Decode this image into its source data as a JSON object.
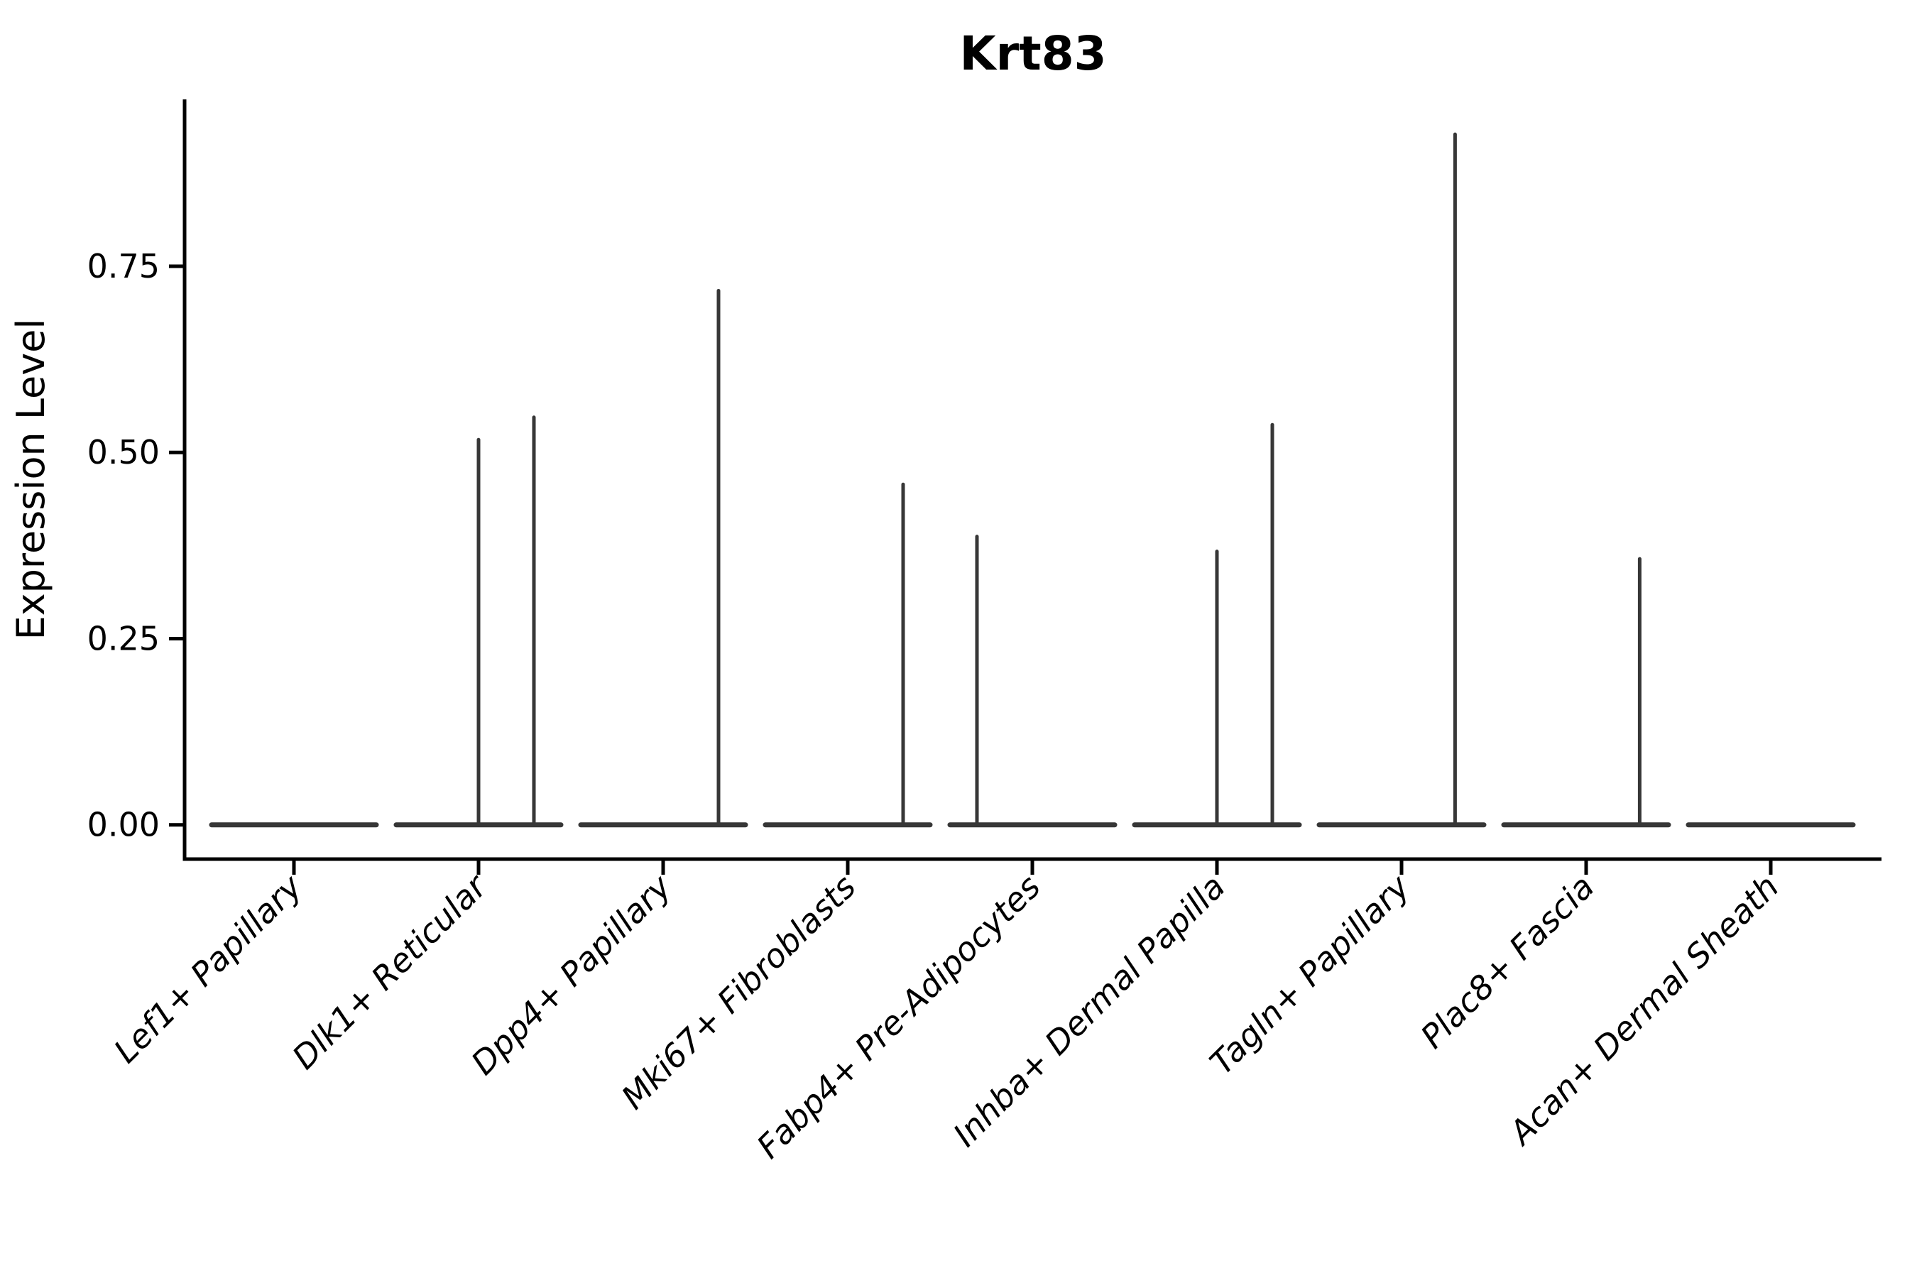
{
  "page": {
    "background": "#ffffff"
  },
  "chart_data": {
    "type": "violin",
    "title": "Krt83",
    "xlabel": "",
    "ylabel": "Expression Level",
    "ylim": [
      -0.046,
      0.974
    ],
    "grid": false,
    "legend": "none",
    "axis_color": "#000000",
    "violin_color": "#373737",
    "yticks": [
      {
        "value": 0.0,
        "label": "0.00"
      },
      {
        "value": 0.25,
        "label": "0.25"
      },
      {
        "value": 0.5,
        "label": "0.50"
      },
      {
        "value": 0.75,
        "label": "0.75"
      }
    ],
    "categories": [
      "Lef1+ Papillary",
      "Dlk1+ Reticular",
      "Dpp4+ Papillary",
      "Mki67+ Fibroblasts",
      "Fabp4+ Pre-Adipocytes",
      "Inhba+ Dermal Papilla",
      "Tagln+ Papillary",
      "Plac8+ Fascia",
      "Acan+ Dermal Sheath"
    ],
    "violins": [
      {
        "category": "Lef1+ Papillary",
        "baseline_value": 0.0,
        "spikes": []
      },
      {
        "category": "Dlk1+ Reticular",
        "baseline_value": 0.0,
        "spikes": [
          {
            "x_offset": 0.0,
            "max_value": 0.52
          },
          {
            "x_offset": 0.3,
            "max_value": 0.55
          }
        ]
      },
      {
        "category": "Dpp4+ Papillary",
        "baseline_value": 0.0,
        "spikes": [
          {
            "x_offset": 0.3,
            "max_value": 0.72
          }
        ]
      },
      {
        "category": "Mki67+ Fibroblasts",
        "baseline_value": 0.0,
        "spikes": [
          {
            "x_offset": 0.3,
            "max_value": 0.46
          }
        ]
      },
      {
        "category": "Fabp4+ Pre-Adipocytes",
        "baseline_value": 0.0,
        "spikes": [
          {
            "x_offset": -0.3,
            "max_value": 0.39
          }
        ]
      },
      {
        "category": "Inhba+ Dermal Papilla",
        "baseline_value": 0.0,
        "spikes": [
          {
            "x_offset": 0.0,
            "max_value": 0.37
          },
          {
            "x_offset": 0.3,
            "max_value": 0.54
          }
        ]
      },
      {
        "category": "Tagln+ Papillary",
        "baseline_value": 0.0,
        "spikes": [
          {
            "x_offset": 0.29,
            "max_value": 0.93
          }
        ]
      },
      {
        "category": "Plac8+ Fascia",
        "baseline_value": 0.0,
        "spikes": [
          {
            "x_offset": 0.29,
            "max_value": 0.36
          }
        ]
      },
      {
        "category": "Acan+ Dermal Sheath",
        "baseline_value": 0.0,
        "spikes": []
      }
    ]
  }
}
